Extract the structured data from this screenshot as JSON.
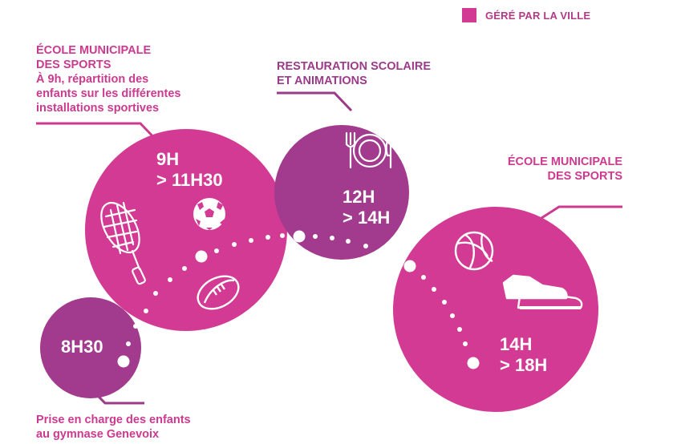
{
  "legend": {
    "label": "GÉRÉ PAR LA VILLE",
    "color": "#d23a93"
  },
  "colors": {
    "pink": "#d23a93",
    "purple": "#a23a8d",
    "text_pink": "#cc3a8f",
    "text_purple": "#9c3a8a"
  },
  "steps": [
    {
      "id": "accueil",
      "time": [
        "8H30"
      ],
      "caption": [
        "Prise en charge des enfants",
        "au gymnase Genevoix"
      ],
      "color": "purple"
    },
    {
      "id": "sport-matin",
      "time": [
        "9H",
        "> 11H30"
      ],
      "caption_title": [
        "ÉCOLE MUNICIPALE",
        "DES SPORTS"
      ],
      "caption": [
        "À 9h, répartition des",
        "enfants sur les différentes",
        "installations sportives"
      ],
      "icons": [
        "tennis-racket-icon",
        "soccer-ball-icon",
        "rugby-ball-icon"
      ],
      "color": "pink"
    },
    {
      "id": "restauration",
      "time": [
        "12H",
        "> 14H"
      ],
      "caption_title": [
        "RESTAURATION SCOLAIRE",
        "ET ANIMATIONS"
      ],
      "icons": [
        "plate-cutlery-icon"
      ],
      "color": "purple"
    },
    {
      "id": "sport-apres-midi",
      "time": [
        "14H",
        "> 18H"
      ],
      "caption_title": [
        "ÉCOLE MUNICIPALE",
        "DES SPORTS"
      ],
      "icons": [
        "volleyball-icon",
        "sneaker-icon"
      ],
      "color": "pink"
    }
  ]
}
